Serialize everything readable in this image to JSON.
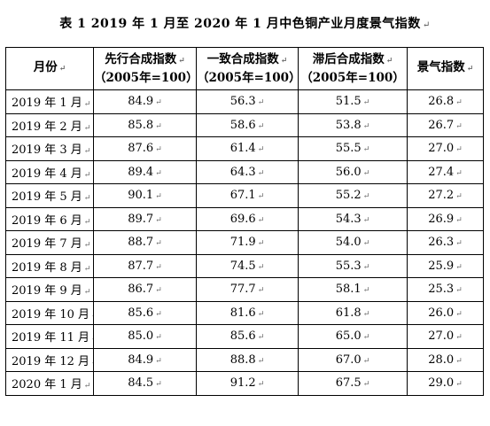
{
  "title": "表 1  2019 年 1 月至 2020 年 1 月中色铜产业月度景气指数",
  "table": {
    "headers": [
      {
        "line1": "月份",
        "line2": ""
      },
      {
        "line1": "先行合成指数",
        "line2": "（2005年=100）"
      },
      {
        "line1": "一致合成指数",
        "line2": "（2005年=100）"
      },
      {
        "line1": "滞后合成指数",
        "line2": "（2005年=100）"
      },
      {
        "line1": "景气指数",
        "line2": ""
      }
    ],
    "rows": [
      [
        "2019 年 1 月",
        "84.9",
        "56.3",
        "51.5",
        "26.8"
      ],
      [
        "2019 年 2 月",
        "85.8",
        "58.6",
        "53.8",
        "26.7"
      ],
      [
        "2019 年 3 月",
        "87.6",
        "61.4",
        "55.5",
        "27.0"
      ],
      [
        "2019 年 4 月",
        "89.4",
        "64.3",
        "56.0",
        "27.4"
      ],
      [
        "2019 年 5 月",
        "90.1",
        "67.1",
        "55.2",
        "27.2"
      ],
      [
        "2019 年 6 月",
        "89.7",
        "69.6",
        "54.3",
        "26.9"
      ],
      [
        "2019 年 7 月",
        "88.7",
        "71.9",
        "54.0",
        "26.3"
      ],
      [
        "2019 年 8 月",
        "87.7",
        "74.5",
        "55.3",
        "25.9"
      ],
      [
        "2019 年 9 月",
        "86.7",
        "77.7",
        "58.1",
        "25.3"
      ],
      [
        "2019 年 10 月",
        "85.6",
        "81.6",
        "61.8",
        "26.0"
      ],
      [
        "2019 年 11 月",
        "85.0",
        "85.6",
        "65.0",
        "27.0"
      ],
      [
        "2019 年 12 月",
        "84.9",
        "88.8",
        "67.0",
        "28.0"
      ],
      [
        "2020 年 1 月",
        "84.5",
        "91.2",
        "67.5",
        "29.0"
      ]
    ]
  }
}
